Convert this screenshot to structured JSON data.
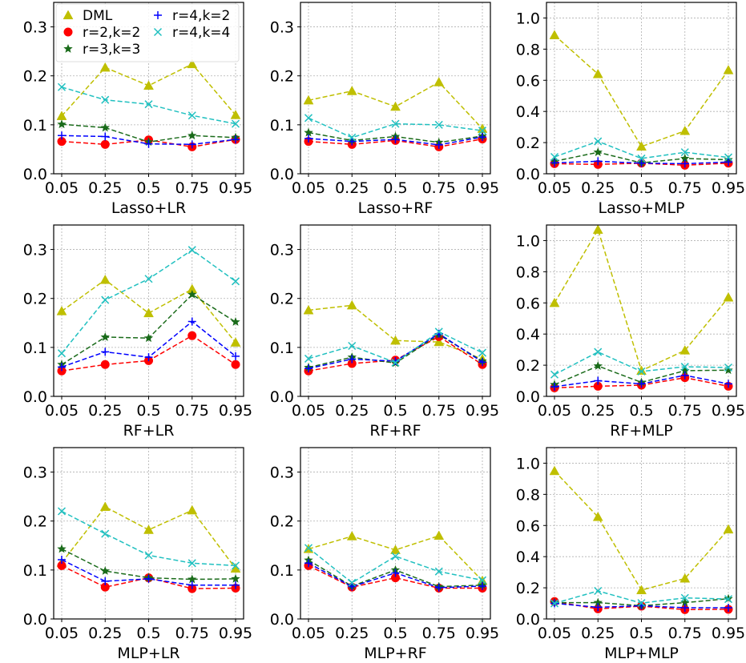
{
  "chart_data": {
    "type": "line",
    "layout": "3x3 grid of subplots",
    "legend": {
      "placement": "upper-left of first subplot",
      "entries": [
        "DML",
        "r=2,k=2",
        "r=3,k=3",
        "r=4,k=2",
        "r=4,k=4"
      ]
    },
    "series_styles": [
      {
        "name": "DML",
        "color": "#bfbf00",
        "marker": "triangle",
        "line": "dashed"
      },
      {
        "name": "r=2,k=2",
        "color": "#ff0000",
        "marker": "circle",
        "line": "dashed"
      },
      {
        "name": "r=3,k=3",
        "color": "#1a6b1a",
        "marker": "star",
        "line": "dashed"
      },
      {
        "name": "r=4,k=2",
        "color": "#0000ff",
        "marker": "plus",
        "line": "dashed"
      },
      {
        "name": "r=4,k=4",
        "color": "#20c0c0",
        "marker": "x",
        "line": "dashed"
      }
    ],
    "x": [
      "0.05",
      "0.25",
      "0.5",
      "0.75",
      "0.95"
    ],
    "subplots": [
      {
        "title": "",
        "xlabel": "Lasso+LR",
        "ylabel": "",
        "ylim": [
          0,
          0.35
        ],
        "yticks": [
          "0.0",
          "0.1",
          "0.2",
          "0.3"
        ],
        "ytick_values": [
          0,
          0.1,
          0.2,
          0.3
        ],
        "grid": true,
        "show_legend": true,
        "series": [
          {
            "name": "DML",
            "values": [
              0.118,
              0.217,
              0.18,
              0.224,
              0.12
            ]
          },
          {
            "name": "r=2,k=2",
            "values": [
              0.066,
              0.06,
              0.069,
              0.055,
              0.07
            ]
          },
          {
            "name": "r=3,k=3",
            "values": [
              0.101,
              0.094,
              0.065,
              0.078,
              0.074
            ]
          },
          {
            "name": "r=4,k=2",
            "values": [
              0.078,
              0.076,
              0.061,
              0.06,
              0.07
            ]
          },
          {
            "name": "r=4,k=4",
            "values": [
              0.177,
              0.151,
              0.142,
              0.119,
              0.102
            ]
          }
        ]
      },
      {
        "title": "",
        "xlabel": "Lasso+RF",
        "ylabel": "",
        "ylim": [
          0,
          0.35
        ],
        "yticks": [
          "0.0",
          "0.1",
          "0.2",
          "0.3"
        ],
        "ytick_values": [
          0,
          0.1,
          0.2,
          0.3
        ],
        "grid": true,
        "show_legend": false,
        "series": [
          {
            "name": "DML",
            "values": [
              0.15,
              0.169,
              0.137,
              0.187,
              0.092
            ]
          },
          {
            "name": "r=2,k=2",
            "values": [
              0.066,
              0.06,
              0.068,
              0.055,
              0.071
            ]
          },
          {
            "name": "r=3,k=3",
            "values": [
              0.084,
              0.068,
              0.076,
              0.064,
              0.077
            ]
          },
          {
            "name": "r=4,k=2",
            "values": [
              0.072,
              0.066,
              0.07,
              0.059,
              0.075
            ]
          },
          {
            "name": "r=4,k=4",
            "values": [
              0.114,
              0.074,
              0.102,
              0.1,
              0.088
            ]
          }
        ]
      },
      {
        "title": "",
        "xlabel": "Lasso+MLP",
        "ylabel": "",
        "ylim": [
          0,
          1.1
        ],
        "yticks": [
          "0.0",
          "0.2",
          "0.4",
          "0.6",
          "0.8",
          "1.0"
        ],
        "ytick_values": [
          0,
          0.2,
          0.4,
          0.6,
          0.8,
          1.0
        ],
        "grid": true,
        "show_legend": false,
        "series": [
          {
            "name": "DML",
            "values": [
              0.89,
              0.64,
              0.175,
              0.275,
              0.665
            ]
          },
          {
            "name": "r=2,k=2",
            "values": [
              0.065,
              0.06,
              0.068,
              0.055,
              0.068
            ]
          },
          {
            "name": "r=3,k=3",
            "values": [
              0.08,
              0.138,
              0.07,
              0.098,
              0.09
            ]
          },
          {
            "name": "r=4,k=2",
            "values": [
              0.07,
              0.08,
              0.068,
              0.065,
              0.075
            ]
          },
          {
            "name": "r=4,k=4",
            "values": [
              0.108,
              0.208,
              0.098,
              0.138,
              0.105
            ]
          }
        ]
      },
      {
        "title": "",
        "xlabel": "RF+LR",
        "ylabel": "",
        "ylim": [
          0,
          0.35
        ],
        "yticks": [
          "0.0",
          "0.1",
          "0.2",
          "0.3"
        ],
        "ytick_values": [
          0,
          0.1,
          0.2,
          0.3
        ],
        "grid": true,
        "show_legend": false,
        "series": [
          {
            "name": "DML",
            "values": [
              0.174,
              0.238,
              0.17,
              0.219,
              0.11
            ]
          },
          {
            "name": "r=2,k=2",
            "values": [
              0.052,
              0.065,
              0.073,
              0.124,
              0.065
            ]
          },
          {
            "name": "r=3,k=3",
            "values": [
              0.065,
              0.121,
              0.119,
              0.208,
              0.152
            ]
          },
          {
            "name": "r=4,k=2",
            "values": [
              0.06,
              0.091,
              0.08,
              0.153,
              0.082
            ]
          },
          {
            "name": "r=4,k=4",
            "values": [
              0.088,
              0.197,
              0.24,
              0.299,
              0.235
            ]
          }
        ]
      },
      {
        "title": "",
        "xlabel": "RF+RF",
        "ylabel": "",
        "ylim": [
          0,
          0.35
        ],
        "yticks": [
          "0.0",
          "0.1",
          "0.2",
          "0.3"
        ],
        "ytick_values": [
          0,
          0.1,
          0.2,
          0.3
        ],
        "grid": true,
        "show_legend": false,
        "series": [
          {
            "name": "DML",
            "values": [
              0.176,
              0.186,
              0.114,
              0.111,
              0.076
            ]
          },
          {
            "name": "r=2,k=2",
            "values": [
              0.052,
              0.067,
              0.074,
              0.122,
              0.065
            ]
          },
          {
            "name": "r=3,k=3",
            "values": [
              0.059,
              0.08,
              0.068,
              0.126,
              0.072
            ]
          },
          {
            "name": "r=4,k=2",
            "values": [
              0.057,
              0.076,
              0.072,
              0.128,
              0.07
            ]
          },
          {
            "name": "r=4,k=4",
            "values": [
              0.077,
              0.103,
              0.069,
              0.132,
              0.089
            ]
          }
        ]
      },
      {
        "title": "",
        "xlabel": "RF+MLP",
        "ylabel": "",
        "ylim": [
          0,
          1.1
        ],
        "yticks": [
          "0.0",
          "0.2",
          "0.4",
          "0.6",
          "0.8",
          "1.0"
        ],
        "ytick_values": [
          0,
          0.2,
          0.4,
          0.6,
          0.8,
          1.0
        ],
        "grid": true,
        "show_legend": false,
        "series": [
          {
            "name": "DML",
            "values": [
              0.6,
              1.07,
              0.165,
              0.295,
              0.635
            ]
          },
          {
            "name": "r=2,k=2",
            "values": [
              0.055,
              0.065,
              0.072,
              0.12,
              0.065
            ]
          },
          {
            "name": "r=3,k=3",
            "values": [
              0.075,
              0.195,
              0.09,
              0.165,
              0.168
            ]
          },
          {
            "name": "r=4,k=2",
            "values": [
              0.062,
              0.1,
              0.08,
              0.135,
              0.08
            ]
          },
          {
            "name": "r=4,k=4",
            "values": [
              0.14,
              0.285,
              0.16,
              0.19,
              0.185
            ]
          }
        ]
      },
      {
        "title": "",
        "xlabel": "MLP+LR",
        "ylabel": "",
        "ylim": [
          0,
          0.35
        ],
        "yticks": [
          "0.0",
          "0.1",
          "0.2",
          "0.3"
        ],
        "ytick_values": [
          0,
          0.1,
          0.2,
          0.3
        ],
        "grid": true,
        "show_legend": false,
        "series": [
          {
            "name": "DML",
            "values": [
              0.115,
              0.229,
              0.182,
              0.222,
              0.103
            ]
          },
          {
            "name": "r=2,k=2",
            "values": [
              0.109,
              0.065,
              0.084,
              0.062,
              0.063
            ]
          },
          {
            "name": "r=3,k=3",
            "values": [
              0.143,
              0.098,
              0.084,
              0.081,
              0.082
            ]
          },
          {
            "name": "r=4,k=2",
            "values": [
              0.121,
              0.077,
              0.082,
              0.069,
              0.069
            ]
          },
          {
            "name": "r=4,k=4",
            "values": [
              0.22,
              0.174,
              0.13,
              0.114,
              0.109
            ]
          }
        ]
      },
      {
        "title": "",
        "xlabel": "MLP+RF",
        "ylabel": "",
        "ylim": [
          0,
          0.35
        ],
        "yticks": [
          "0.0",
          "0.1",
          "0.2",
          "0.3"
        ],
        "ytick_values": [
          0,
          0.1,
          0.2,
          0.3
        ],
        "grid": true,
        "show_legend": false,
        "series": [
          {
            "name": "DML",
            "values": [
              0.143,
              0.169,
              0.141,
              0.17,
              0.078
            ]
          },
          {
            "name": "r=2,k=2",
            "values": [
              0.109,
              0.065,
              0.084,
              0.063,
              0.063
            ]
          },
          {
            "name": "r=3,k=3",
            "values": [
              0.12,
              0.067,
              0.1,
              0.066,
              0.069
            ]
          },
          {
            "name": "r=4,k=2",
            "values": [
              0.114,
              0.066,
              0.094,
              0.064,
              0.067
            ]
          },
          {
            "name": "r=4,k=4",
            "values": [
              0.145,
              0.074,
              0.128,
              0.097,
              0.079
            ]
          }
        ]
      },
      {
        "title": "",
        "xlabel": "MLP+MLP",
        "ylabel": "",
        "ylim": [
          0,
          1.1
        ],
        "yticks": [
          "0.0",
          "0.2",
          "0.4",
          "0.6",
          "0.8",
          "1.0"
        ],
        "ytick_values": [
          0,
          0.2,
          0.4,
          0.6,
          0.8,
          1.0
        ],
        "grid": true,
        "show_legend": false,
        "series": [
          {
            "name": "DML",
            "values": [
              0.95,
              0.655,
              0.185,
              0.26,
              0.575
            ]
          },
          {
            "name": "r=2,k=2",
            "values": [
              0.112,
              0.065,
              0.082,
              0.06,
              0.062
            ]
          },
          {
            "name": "r=3,k=3",
            "values": [
              0.105,
              0.105,
              0.085,
              0.105,
              0.13
            ]
          },
          {
            "name": "r=4,k=2",
            "values": [
              0.1,
              0.075,
              0.085,
              0.072,
              0.072
            ]
          },
          {
            "name": "r=4,k=4",
            "values": [
              0.1,
              0.18,
              0.102,
              0.135,
              0.128
            ]
          }
        ]
      }
    ]
  }
}
